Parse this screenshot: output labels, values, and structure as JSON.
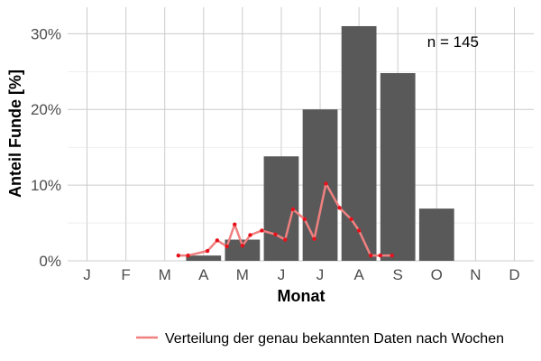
{
  "chart_data": {
    "type": "bar",
    "xlabel": "Monat",
    "ylabel": "Anteil Funde [%]",
    "annotation": "n = 145",
    "categories": [
      "J",
      "F",
      "M",
      "A",
      "M",
      "J",
      "J",
      "A",
      "S",
      "O",
      "N",
      "D"
    ],
    "y_tick_labels": [
      "0%",
      "10%",
      "20%",
      "30%"
    ],
    "y_ticks": [
      0,
      10,
      20,
      30
    ],
    "ylim": [
      0,
      33.5
    ],
    "grid": true,
    "legend_position": "bottom",
    "colors": {
      "bars": "#595959",
      "line": "#f08080",
      "points": "#e8111b",
      "grid": "#cccccc"
    },
    "series": [
      {
        "values": [
          0,
          0,
          0,
          0.7,
          2.8,
          13.8,
          20.0,
          31.0,
          24.8,
          6.9,
          0,
          0
        ]
      }
    ],
    "weekly_series": {
      "name": "Verteilung der genau bekannten Daten nach Wochen",
      "x": [
        3.35,
        3.6,
        4.1,
        4.35,
        4.6,
        4.8,
        5.0,
        5.2,
        5.5,
        5.85,
        6.1,
        6.3,
        6.6,
        6.85,
        7.15,
        7.5,
        7.8,
        8.0,
        8.3,
        8.55,
        8.85
      ],
      "y": [
        0.7,
        0.7,
        1.3,
        2.7,
        1.9,
        4.8,
        2.0,
        3.4,
        4.0,
        3.5,
        2.8,
        6.8,
        5.5,
        2.9,
        10.2,
        7.0,
        5.5,
        4.0,
        0.7,
        0.7,
        0.7
      ]
    }
  }
}
